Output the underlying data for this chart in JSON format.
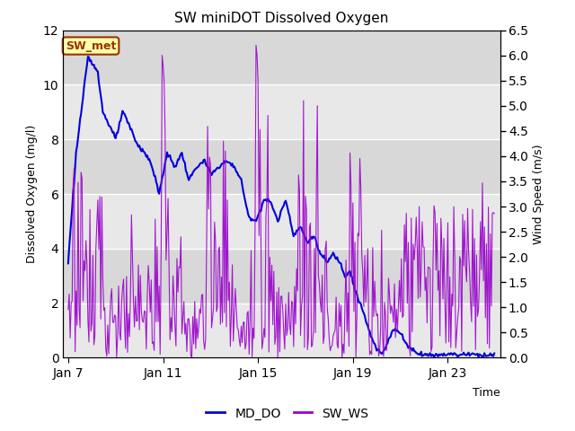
{
  "title": "SW miniDOT Dissolved Oxygen",
  "xlabel": "Time",
  "ylabel_left": "Dissolved Oxygen (mg/l)",
  "ylabel_right": "Wind Speed (m/s)",
  "ylim_left": [
    0,
    12
  ],
  "ylim_right": [
    0,
    6.5
  ],
  "yticks_left": [
    0,
    2,
    4,
    6,
    8,
    10,
    12
  ],
  "yticks_right": [
    0.0,
    0.5,
    1.0,
    1.5,
    2.0,
    2.5,
    3.0,
    3.5,
    4.0,
    4.5,
    5.0,
    5.5,
    6.0,
    6.5
  ],
  "xtick_labels": [
    "Jan 7",
    "Jan 11",
    "Jan 15",
    "Jan 19",
    "Jan 23"
  ],
  "xtick_positions": [
    0,
    96,
    192,
    288,
    384
  ],
  "color_do": "#0000dd",
  "color_ws": "#9900cc",
  "legend_labels": [
    "MD_DO",
    "SW_WS"
  ],
  "annotation_text": "SW_met",
  "annotation_box_color": "#ffffaa",
  "annotation_box_edge": "#993300",
  "annotation_text_color": "#993300",
  "band_colors": [
    "#e8e8e8",
    "#d8d8d8"
  ],
  "band_edges": [
    0,
    2,
    4,
    6,
    8,
    10,
    12
  ],
  "n_points": 432
}
